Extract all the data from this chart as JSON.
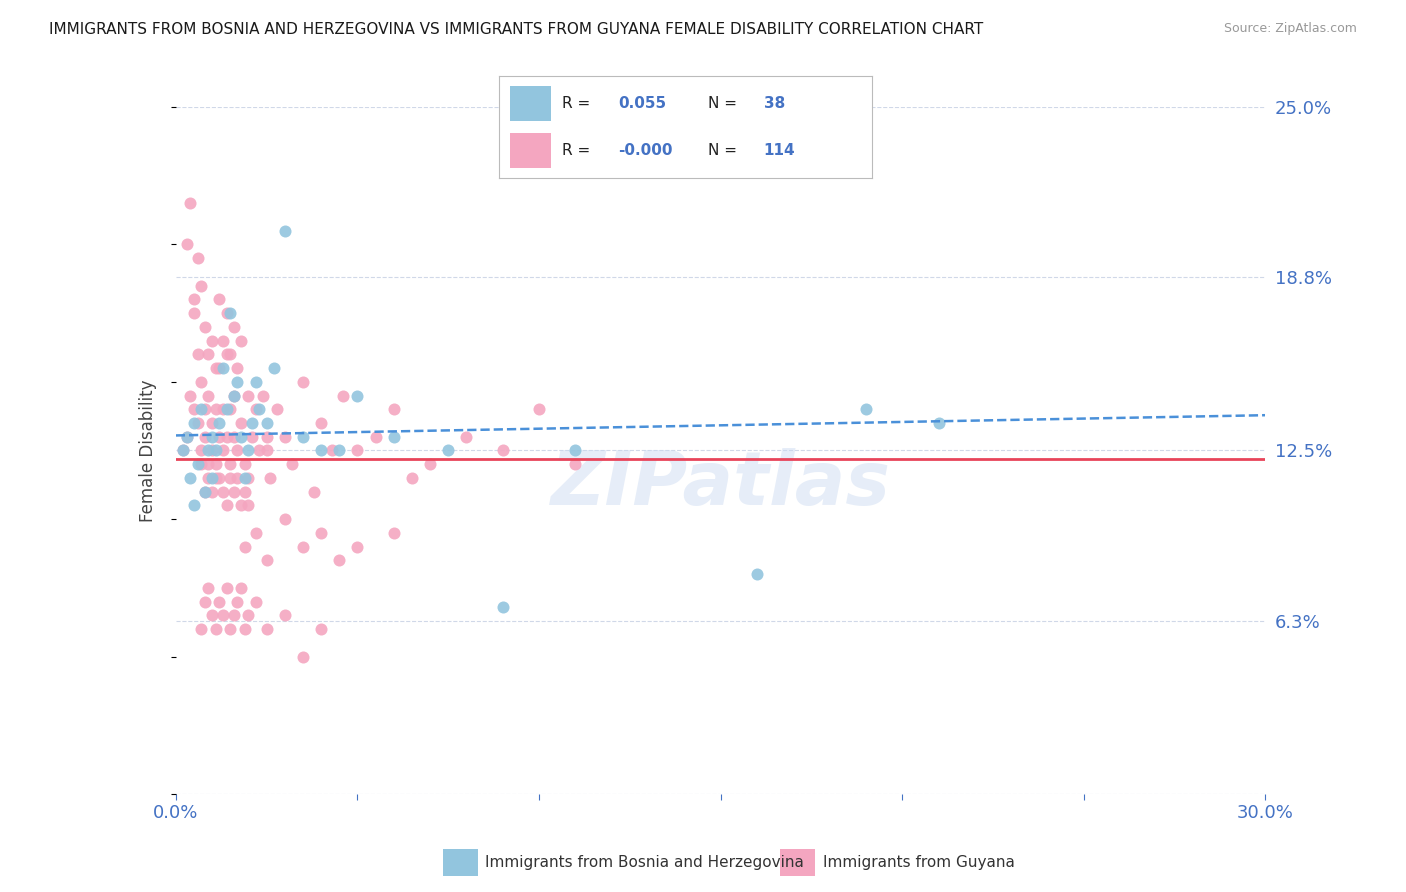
{
  "title": "IMMIGRANTS FROM BOSNIA AND HERZEGOVINA VS IMMIGRANTS FROM GUYANA FEMALE DISABILITY CORRELATION CHART",
  "source": "Source: ZipAtlas.com",
  "ylabel": "Female Disability",
  "xmin": 0.0,
  "xmax": 0.3,
  "ymin": 0.0,
  "ymax": 0.25,
  "series1_label": "Immigrants from Bosnia and Herzegovina",
  "series1_R": "0.055",
  "series1_N": "38",
  "series1_dot_color": "#92c5de",
  "series2_label": "Immigrants from Guyana",
  "series2_R": "-0.000",
  "series2_N": "114",
  "series2_dot_color": "#f4a6c0",
  "trend1_color": "#4a90d9",
  "trend2_color": "#e8445a",
  "watermark": "ZIPatlas",
  "background_color": "#ffffff",
  "grid_color": "#d0d8e8",
  "legend_box_color1": "#92c5de",
  "legend_box_color2": "#f4a6c0",
  "series1_x": [
    0.002,
    0.003,
    0.004,
    0.005,
    0.005,
    0.006,
    0.007,
    0.008,
    0.009,
    0.01,
    0.01,
    0.011,
    0.012,
    0.013,
    0.014,
    0.015,
    0.016,
    0.017,
    0.018,
    0.019,
    0.02,
    0.021,
    0.022,
    0.023,
    0.025,
    0.027,
    0.03,
    0.035,
    0.04,
    0.045,
    0.05,
    0.06,
    0.075,
    0.09,
    0.11,
    0.16,
    0.19,
    0.21
  ],
  "series1_y": [
    0.125,
    0.13,
    0.115,
    0.105,
    0.135,
    0.12,
    0.14,
    0.11,
    0.125,
    0.115,
    0.13,
    0.125,
    0.135,
    0.155,
    0.14,
    0.175,
    0.145,
    0.15,
    0.13,
    0.115,
    0.125,
    0.135,
    0.15,
    0.14,
    0.135,
    0.155,
    0.205,
    0.13,
    0.125,
    0.125,
    0.145,
    0.13,
    0.125,
    0.068,
    0.125,
    0.08,
    0.14,
    0.135
  ],
  "series2_x": [
    0.002,
    0.003,
    0.004,
    0.005,
    0.005,
    0.006,
    0.006,
    0.007,
    0.007,
    0.008,
    0.008,
    0.009,
    0.009,
    0.01,
    0.01,
    0.011,
    0.011,
    0.012,
    0.012,
    0.013,
    0.013,
    0.014,
    0.014,
    0.015,
    0.015,
    0.016,
    0.016,
    0.017,
    0.018,
    0.019,
    0.02,
    0.021,
    0.022,
    0.023,
    0.024,
    0.025,
    0.026,
    0.028,
    0.03,
    0.032,
    0.035,
    0.038,
    0.04,
    0.043,
    0.046,
    0.05,
    0.055,
    0.06,
    0.065,
    0.07,
    0.08,
    0.09,
    0.1,
    0.11,
    0.003,
    0.004,
    0.005,
    0.006,
    0.007,
    0.008,
    0.009,
    0.01,
    0.011,
    0.012,
    0.013,
    0.014,
    0.015,
    0.016,
    0.017,
    0.018,
    0.019,
    0.02,
    0.022,
    0.025,
    0.03,
    0.035,
    0.04,
    0.045,
    0.05,
    0.06,
    0.007,
    0.008,
    0.009,
    0.01,
    0.011,
    0.012,
    0.013,
    0.014,
    0.015,
    0.016,
    0.017,
    0.018,
    0.019,
    0.02,
    0.022,
    0.025,
    0.03,
    0.035,
    0.04,
    0.007,
    0.008,
    0.009,
    0.01,
    0.011,
    0.012,
    0.013,
    0.014,
    0.015,
    0.016,
    0.017,
    0.018,
    0.019,
    0.02,
    0.025
  ],
  "series2_y": [
    0.125,
    0.13,
    0.145,
    0.14,
    0.18,
    0.16,
    0.135,
    0.125,
    0.15,
    0.13,
    0.14,
    0.12,
    0.145,
    0.125,
    0.135,
    0.14,
    0.115,
    0.13,
    0.155,
    0.125,
    0.14,
    0.13,
    0.16,
    0.12,
    0.14,
    0.13,
    0.145,
    0.125,
    0.135,
    0.12,
    0.145,
    0.13,
    0.14,
    0.125,
    0.145,
    0.13,
    0.115,
    0.14,
    0.13,
    0.12,
    0.15,
    0.11,
    0.135,
    0.125,
    0.145,
    0.125,
    0.13,
    0.14,
    0.115,
    0.12,
    0.13,
    0.125,
    0.14,
    0.12,
    0.2,
    0.215,
    0.175,
    0.195,
    0.185,
    0.17,
    0.16,
    0.165,
    0.155,
    0.18,
    0.165,
    0.175,
    0.16,
    0.17,
    0.155,
    0.165,
    0.09,
    0.105,
    0.095,
    0.085,
    0.1,
    0.09,
    0.095,
    0.085,
    0.09,
    0.095,
    0.06,
    0.07,
    0.075,
    0.065,
    0.06,
    0.07,
    0.065,
    0.075,
    0.06,
    0.065,
    0.07,
    0.075,
    0.06,
    0.065,
    0.07,
    0.06,
    0.065,
    0.05,
    0.06,
    0.12,
    0.11,
    0.115,
    0.11,
    0.12,
    0.115,
    0.11,
    0.105,
    0.115,
    0.11,
    0.115,
    0.105,
    0.11,
    0.115,
    0.125
  ]
}
